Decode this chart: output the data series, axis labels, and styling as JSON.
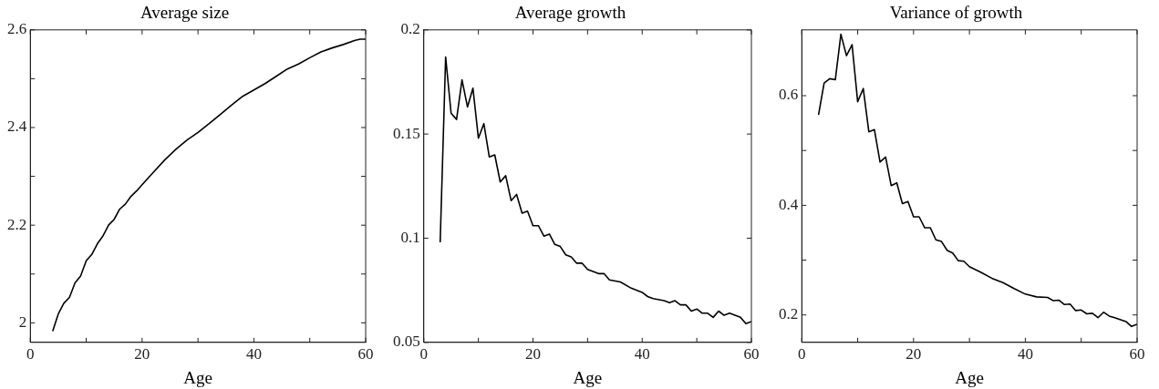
{
  "chart_data": [
    {
      "type": "line",
      "title": "Average size",
      "xlabel": "Age",
      "color": "#000000",
      "x": [
        4,
        5,
        6,
        7,
        8,
        9,
        10,
        11,
        12,
        13,
        14,
        15,
        16,
        17,
        18,
        19,
        20,
        22,
        24,
        26,
        28,
        30,
        32,
        34,
        36,
        38,
        40,
        42,
        44,
        46,
        48,
        50,
        52,
        54,
        56,
        58,
        59,
        60
      ],
      "values": [
        1.983,
        2.018,
        2.04,
        2.052,
        2.082,
        2.096,
        2.127,
        2.14,
        2.162,
        2.178,
        2.2,
        2.212,
        2.233,
        2.243,
        2.259,
        2.27,
        2.283,
        2.308,
        2.333,
        2.355,
        2.374,
        2.39,
        2.408,
        2.427,
        2.446,
        2.464,
        2.477,
        2.49,
        2.505,
        2.52,
        2.53,
        2.543,
        2.555,
        2.563,
        2.57,
        2.578,
        2.581,
        2.581
      ],
      "xlim": [
        0,
        60
      ],
      "xticks": [
        0,
        {
          "value": 10,
          "label": null
        },
        20,
        {
          "value": 30,
          "label": null
        },
        40,
        {
          "value": 50,
          "label": null
        },
        60
      ],
      "ylim": [
        1.96,
        2.6
      ],
      "yticks": [
        2,
        {
          "value": 2.1,
          "label": null
        },
        2.2,
        {
          "value": 2.3,
          "label": null
        },
        2.4,
        {
          "value": 2.5,
          "label": null
        },
        2.6
      ],
      "grid": false,
      "marker": "none",
      "line_style": "solid"
    },
    {
      "type": "line",
      "title": "Average growth",
      "xlabel": "Age",
      "color": "#000000",
      "x": [
        3,
        4,
        5,
        6,
        7,
        8,
        9,
        10,
        11,
        12,
        13,
        14,
        15,
        16,
        17,
        18,
        19,
        20,
        21,
        22,
        23,
        24,
        25,
        26,
        27,
        28,
        29,
        30,
        32,
        33,
        34,
        36,
        38,
        40,
        41,
        42,
        44,
        45,
        46,
        47,
        48,
        49,
        50,
        51,
        52,
        53,
        54,
        55,
        56,
        57,
        58,
        59,
        60
      ],
      "values": [
        0.098,
        0.187,
        0.16,
        0.157,
        0.176,
        0.163,
        0.172,
        0.148,
        0.155,
        0.139,
        0.14,
        0.127,
        0.13,
        0.118,
        0.121,
        0.112,
        0.113,
        0.106,
        0.106,
        0.101,
        0.102,
        0.097,
        0.096,
        0.092,
        0.091,
        0.088,
        0.088,
        0.085,
        0.083,
        0.083,
        0.08,
        0.079,
        0.076,
        0.074,
        0.072,
        0.071,
        0.07,
        0.069,
        0.07,
        0.068,
        0.068,
        0.065,
        0.066,
        0.064,
        0.064,
        0.062,
        0.065,
        0.063,
        0.064,
        0.063,
        0.062,
        0.059,
        0.06
      ],
      "xlim": [
        0,
        60
      ],
      "xticks": [
        0,
        {
          "value": 10,
          "label": null
        },
        20,
        {
          "value": 30,
          "label": null
        },
        40,
        {
          "value": 50,
          "label": null
        },
        60
      ],
      "ylim": [
        0.05,
        0.2
      ],
      "yticks": [
        0.05,
        0.1,
        0.15,
        0.2
      ],
      "grid": false,
      "marker": "none",
      "line_style": "solid"
    },
    {
      "type": "line",
      "title": "Variance of growth",
      "xlabel": "Age",
      "color": "#000000",
      "x": [
        3,
        4,
        5,
        6,
        7,
        8,
        9,
        10,
        11,
        12,
        13,
        14,
        15,
        16,
        17,
        18,
        19,
        20,
        21,
        22,
        23,
        24,
        25,
        26,
        27,
        28,
        29,
        30,
        32,
        34,
        36,
        38,
        40,
        42,
        44,
        45,
        46,
        47,
        48,
        49,
        50,
        51,
        52,
        53,
        54,
        55,
        56,
        58,
        59,
        60
      ],
      "values": [
        0.565,
        0.623,
        0.631,
        0.629,
        0.712,
        0.673,
        0.693,
        0.589,
        0.613,
        0.534,
        0.538,
        0.479,
        0.488,
        0.436,
        0.441,
        0.403,
        0.407,
        0.379,
        0.379,
        0.359,
        0.359,
        0.337,
        0.334,
        0.318,
        0.313,
        0.299,
        0.298,
        0.288,
        0.278,
        0.267,
        0.259,
        0.248,
        0.238,
        0.233,
        0.232,
        0.226,
        0.227,
        0.219,
        0.22,
        0.208,
        0.209,
        0.202,
        0.203,
        0.195,
        0.205,
        0.198,
        0.195,
        0.188,
        0.179,
        0.183
      ],
      "xlim": [
        0,
        60
      ],
      "xticks": [
        0,
        {
          "value": 10,
          "label": null
        },
        20,
        {
          "value": 30,
          "label": null
        },
        40,
        {
          "value": 50,
          "label": null
        },
        60
      ],
      "ylim": [
        0.15,
        0.72
      ],
      "yticks": [
        0.2,
        {
          "value": 0.3,
          "label": null
        },
        0.4,
        {
          "value": 0.5,
          "label": null
        },
        0.6
      ],
      "grid": false,
      "marker": "none",
      "line_style": "solid"
    }
  ]
}
